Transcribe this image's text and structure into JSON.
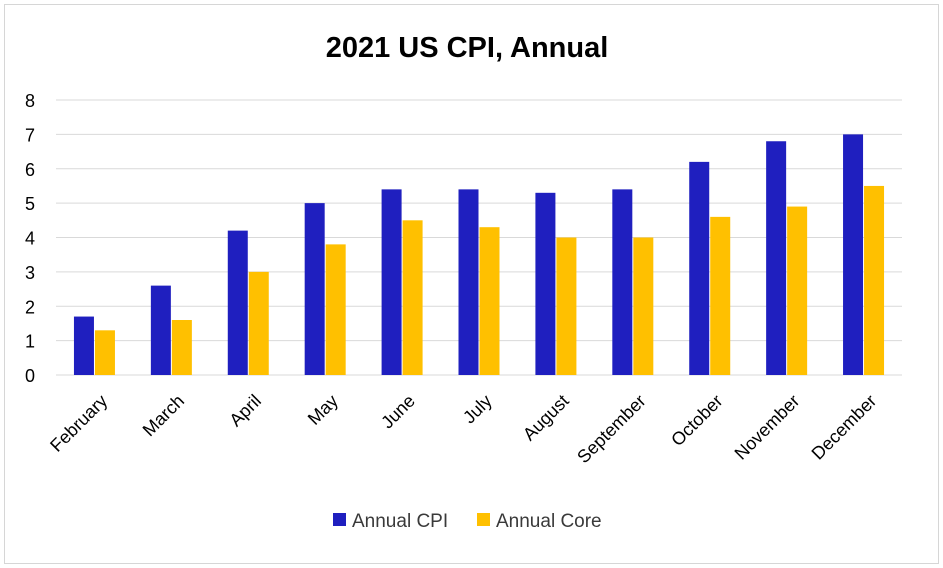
{
  "chart_data": {
    "type": "bar",
    "title": "2021 US CPI, Annual",
    "xlabel": "",
    "ylabel": "",
    "ylim": [
      0,
      8
    ],
    "yticks": [
      0,
      1,
      2,
      3,
      4,
      5,
      6,
      7,
      8
    ],
    "grid": true,
    "legend_position": "bottom",
    "categories": [
      "February",
      "March",
      "April",
      "May",
      "June",
      "July",
      "August",
      "September",
      "October",
      "November",
      "December"
    ],
    "series": [
      {
        "name": "Annual CPI",
        "color": "#1f1fbf",
        "values": [
          1.7,
          2.6,
          4.2,
          5.0,
          5.4,
          5.4,
          5.3,
          5.4,
          6.2,
          6.8,
          7.0
        ]
      },
      {
        "name": "Annual Core",
        "color": "#ffc000",
        "values": [
          1.3,
          1.6,
          3.0,
          3.8,
          4.5,
          4.3,
          4.0,
          4.0,
          4.6,
          4.9,
          5.5
        ]
      }
    ]
  }
}
